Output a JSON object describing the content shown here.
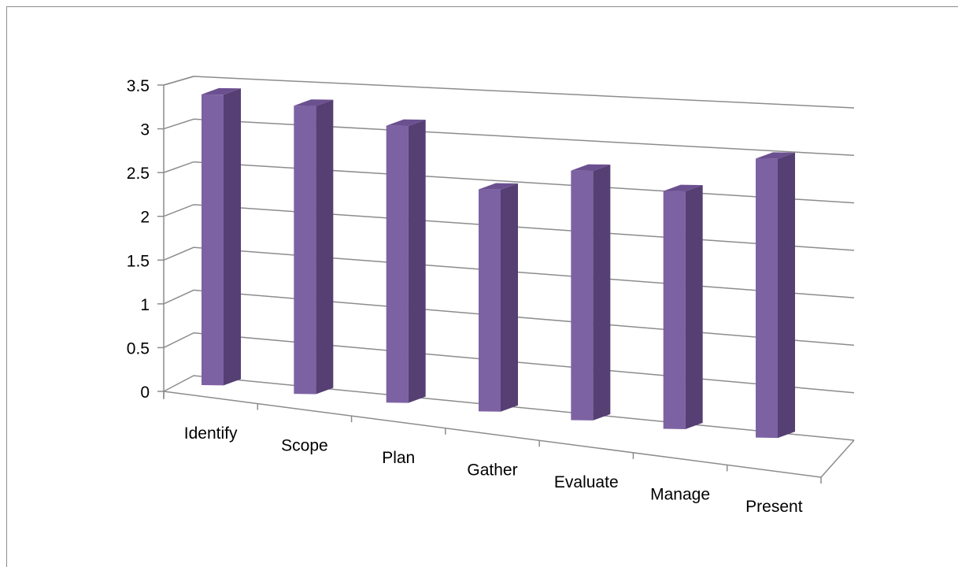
{
  "chart_data": {
    "type": "bar",
    "style": "3d-column",
    "categories": [
      "Identify",
      "Scope",
      "Plan",
      "Gather",
      "Evaluate",
      "Manage",
      "Present"
    ],
    "values": [
      3.4,
      3.35,
      3.2,
      2.55,
      2.85,
      2.7,
      3.15
    ],
    "title": "",
    "xlabel": "",
    "ylabel": "",
    "ylim": [
      0,
      3.5
    ],
    "yticks": [
      "0",
      "0.5",
      "1",
      "1.5",
      "2",
      "2.5",
      "3",
      "3.5"
    ],
    "grid": true,
    "legend": "none",
    "colors": {
      "bar_front": "#7d62a3",
      "bar_side": "#553f73",
      "bar_top": "#6b5090",
      "grid": "#8c8c8c",
      "axis": "#8c8c8c"
    }
  }
}
